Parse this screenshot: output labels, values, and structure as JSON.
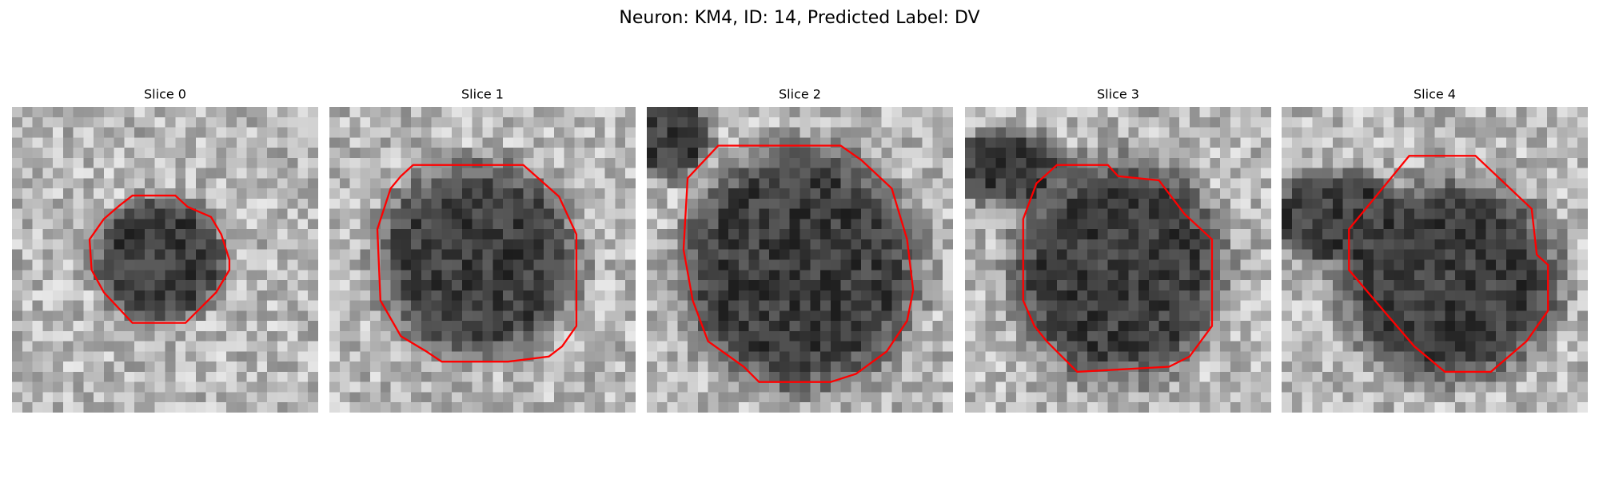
{
  "title": "Neuron: KM4, ID: 14, Predicted Label: DV",
  "panels": [
    {
      "title": "Slice 0"
    },
    {
      "title": "Slice 1"
    },
    {
      "title": "Slice 2"
    },
    {
      "title": "Slice 3"
    },
    {
      "title": "Slice 4"
    }
  ]
}
